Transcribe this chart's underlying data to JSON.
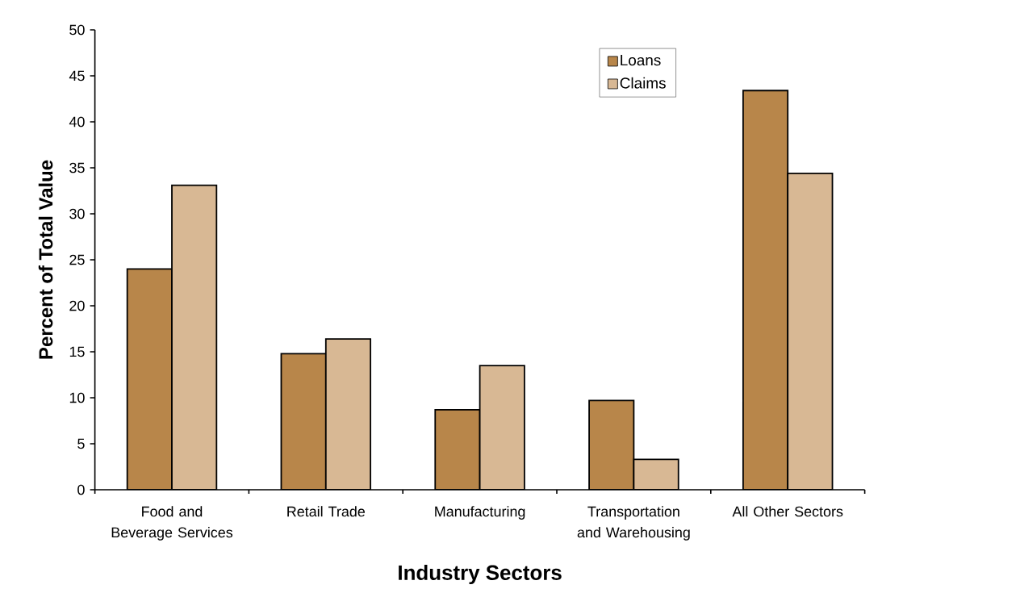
{
  "chart_data": {
    "type": "bar",
    "xlabel": "Industry Sectors",
    "ylabel": "Percent of Total Value",
    "categories": [
      "Food and Beverage Services",
      "Retail Trade",
      "Manufacturing",
      "Transportation and Warehousing",
      "All Other Sectors"
    ],
    "series": [
      {
        "name": "Loans",
        "color": "#b8864a",
        "values": [
          24,
          14.8,
          8.7,
          9.7,
          43.4
        ]
      },
      {
        "name": "Claims",
        "color": "#d8b894",
        "values": [
          33.1,
          16.4,
          13.5,
          3.3,
          34.4
        ]
      }
    ],
    "ylim": [
      0,
      50
    ],
    "yticks": [
      0,
      5,
      10,
      15,
      20,
      25,
      30,
      35,
      40,
      45,
      50
    ],
    "grid": false,
    "legend": "top right"
  }
}
